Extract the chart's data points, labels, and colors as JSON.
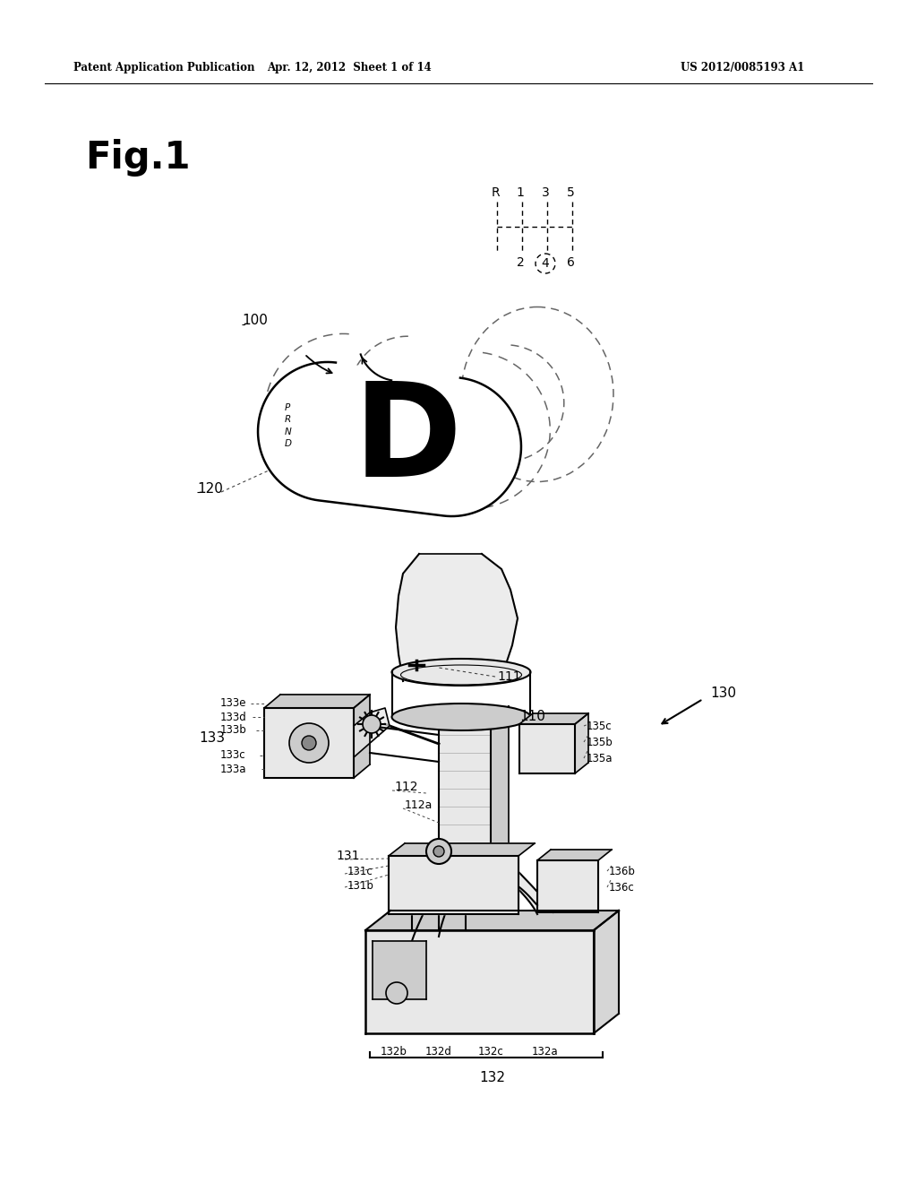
{
  "title_left": "Patent Application Publication",
  "title_center": "Apr. 12, 2012  Sheet 1 of 14",
  "title_right": "US 2012/0085193 A1",
  "fig_label": "Fig.1",
  "background_color": "#ffffff",
  "line_color": "#000000",
  "gray_light": "#e8e8e8",
  "gray_mid": "#cccccc",
  "gray_dark": "#999999",
  "dashed_color": "#555555"
}
